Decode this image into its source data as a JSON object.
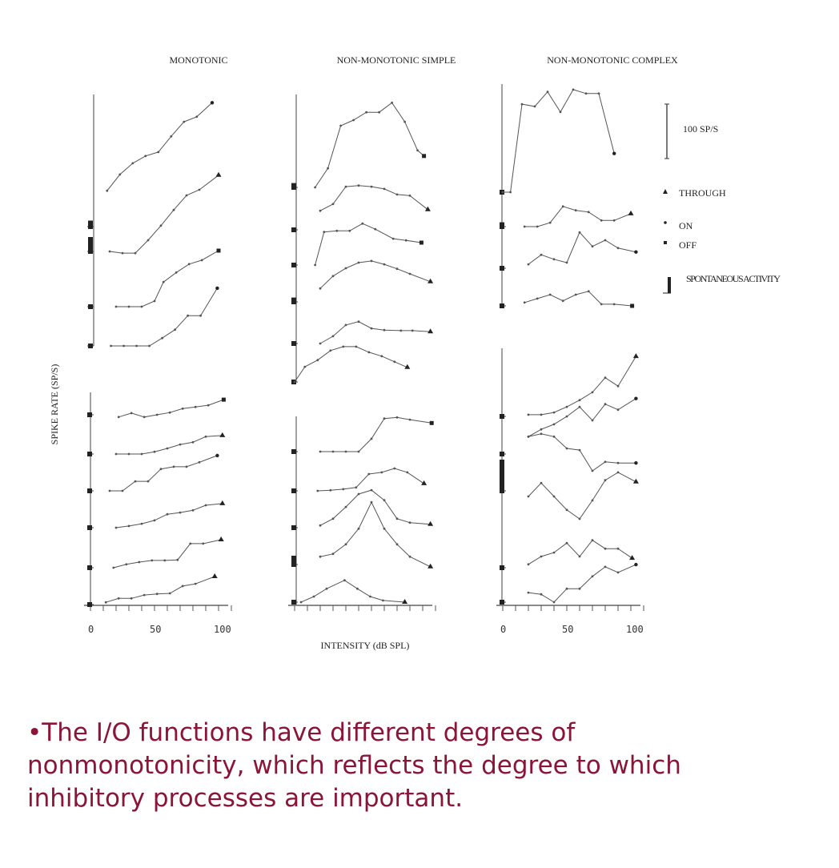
{
  "chart_data": {
    "type": "line",
    "title": "",
    "xlabel": "INTENSITY (dB SPL)",
    "ylabel": "SPIKE RATE (SP/S)",
    "xlim": [
      0,
      100
    ],
    "x_ticks": [
      "0",
      "50",
      "100"
    ],
    "scale_bar": "100 SP/S",
    "panels": [
      {
        "title": "MONOTONIC"
      },
      {
        "title": "NON-MONOTONIC SIMPLE"
      },
      {
        "title": "NON-MONOTONIC COMPLEX"
      }
    ],
    "legend": {
      "placement": "right",
      "items": [
        {
          "marker": "triangle",
          "label": "THROUGH"
        },
        {
          "marker": "dot",
          "label": "ON"
        },
        {
          "marker": "square",
          "label": "OFF"
        },
        {
          "marker": "bar",
          "label": "SPONTANEOUS ACTIVITY"
        }
      ]
    },
    "curves": [
      {
        "panel": 0,
        "marker": "dot",
        "spont": 15,
        "x": [
          13,
          23,
          33,
          43,
          53,
          63,
          73,
          83,
          95
        ],
        "y": [
          64,
          93,
          113,
          126,
          133,
          161,
          187,
          196,
          221
        ]
      },
      {
        "panel": 0,
        "marker": "triangle",
        "spont": 30,
        "x": [
          15,
          25,
          35,
          45,
          55,
          65,
          75,
          85,
          100
        ],
        "y": [
          0,
          -3,
          -3,
          20,
          46,
          74,
          100,
          110,
          136
        ]
      },
      {
        "panel": 0,
        "marker": "square",
        "spont": 0,
        "x": [
          20,
          30,
          40,
          50,
          57,
          67,
          77,
          87,
          100
        ],
        "y": [
          0,
          0,
          0,
          10,
          44,
          61,
          76,
          83,
          100
        ]
      },
      {
        "panel": 0,
        "marker": "dot",
        "spont": 0,
        "x": [
          16,
          26,
          36,
          46,
          56,
          66,
          76,
          86,
          99
        ],
        "y": [
          0,
          0,
          0,
          0,
          14,
          29,
          54,
          54,
          103
        ]
      },
      {
        "panel": 0,
        "marker": "square",
        "spont": 8,
        "x": [
          22,
          32,
          42,
          52,
          62,
          72,
          82,
          92,
          104
        ],
        "y": [
          -4,
          3,
          -4,
          0,
          4,
          11,
          14,
          17,
          27
        ]
      },
      {
        "panel": 0,
        "marker": "triangle",
        "spont": 0,
        "x": [
          20,
          30,
          40,
          50,
          60,
          70,
          80,
          90,
          103
        ],
        "y": [
          0,
          0,
          0,
          4,
          10,
          17,
          21,
          31,
          33
        ]
      },
      {
        "panel": 0,
        "marker": "dot",
        "spont": 6,
        "x": [
          15,
          25,
          35,
          45,
          55,
          65,
          75,
          85,
          99
        ],
        "y": [
          0,
          0,
          17,
          17,
          39,
          43,
          43,
          51,
          63
        ]
      },
      {
        "panel": 0,
        "marker": "triangle",
        "spont": 8,
        "x": [
          20,
          30,
          40,
          50,
          60,
          70,
          80,
          90,
          103
        ],
        "y": [
          0,
          3,
          7,
          13,
          24,
          27,
          31,
          40,
          43
        ]
      },
      {
        "panel": 0,
        "marker": "triangle",
        "spont": 8,
        "x": [
          18,
          28,
          38,
          48,
          58,
          68,
          78,
          88,
          102
        ],
        "y": [
          0,
          6,
          10,
          13,
          13,
          14,
          43,
          43,
          50
        ]
      },
      {
        "panel": 0,
        "marker": "triangle",
        "spont": 8,
        "x": [
          12,
          22,
          32,
          42,
          52,
          62,
          72,
          82,
          97
        ],
        "y": [
          4,
          11,
          11,
          17,
          19,
          20,
          33,
          37,
          50
        ]
      },
      {
        "panel": 1,
        "marker": "square",
        "spont": 12,
        "x": [
          16,
          26,
          36,
          46,
          56,
          66,
          76,
          86,
          96,
          101
        ],
        "y": [
          0,
          34,
          110,
          120,
          134,
          134,
          151,
          117,
          66,
          56
        ]
      },
      {
        "panel": 1,
        "marker": "triangle",
        "spont": 0,
        "x": [
          20,
          30,
          40,
          50,
          60,
          70,
          80,
          90,
          104
        ],
        "y": [
          34,
          46,
          77,
          79,
          77,
          73,
          63,
          61,
          36
        ]
      },
      {
        "panel": 1,
        "marker": "square",
        "spont": 0,
        "x": [
          16,
          23,
          33,
          43,
          53,
          63,
          77,
          87,
          99
        ],
        "y": [
          0,
          59,
          61,
          61,
          74,
          64,
          47,
          44,
          40
        ]
      },
      {
        "panel": 1,
        "marker": "triangle",
        "spont": 12,
        "x": [
          20,
          30,
          40,
          50,
          60,
          70,
          80,
          90,
          106
        ],
        "y": [
          24,
          46,
          60,
          70,
          73,
          67,
          59,
          50,
          36
        ]
      },
      {
        "panel": 1,
        "marker": "triangle",
        "spont": 8,
        "x": [
          20,
          30,
          40,
          50,
          60,
          70,
          83,
          92,
          106
        ],
        "y": [
          0,
          13,
          33,
          39,
          27,
          24,
          23,
          23,
          21
        ]
      },
      {
        "panel": 1,
        "marker": "triangle",
        "spont": 8,
        "x": [
          0,
          8,
          18,
          28,
          38,
          48,
          58,
          68,
          78,
          88
        ],
        "y": [
          0,
          27,
          39,
          56,
          63,
          63,
          53,
          46,
          36,
          26
        ]
      },
      {
        "panel": 1,
        "marker": "square",
        "spont": 8,
        "x": [
          20,
          30,
          40,
          50,
          60,
          70,
          80,
          90,
          107
        ],
        "y": [
          0,
          0,
          0,
          0,
          23,
          59,
          61,
          57,
          51
        ]
      },
      {
        "panel": 1,
        "marker": "triangle",
        "spont": 8,
        "x": [
          18,
          28,
          38,
          48,
          58,
          68,
          78,
          88,
          101
        ],
        "y": [
          0,
          1,
          3,
          6,
          30,
          33,
          40,
          33,
          13
        ]
      },
      {
        "panel": 1,
        "marker": "triangle",
        "spont": 8,
        "x": [
          20,
          30,
          40,
          50,
          60,
          70,
          80,
          90,
          106
        ],
        "y": [
          4,
          16,
          37,
          60,
          67,
          49,
          16,
          9,
          6
        ]
      },
      {
        "panel": 1,
        "marker": "triangle",
        "spont": 20,
        "x": [
          20,
          30,
          40,
          50,
          60,
          70,
          80,
          90,
          106
        ],
        "y": [
          14,
          19,
          36,
          64,
          111,
          64,
          36,
          14,
          -4
        ]
      },
      {
        "panel": 1,
        "marker": "triangle",
        "spont": 8,
        "x": [
          5,
          15,
          25,
          39,
          49,
          59,
          69,
          86
        ],
        "y": [
          0,
          10,
          24,
          39,
          24,
          10,
          3,
          0
        ]
      },
      {
        "panel": 2,
        "marker": "dot",
        "spont": 0,
        "x": [
          0,
          6,
          15,
          25,
          35,
          45,
          55,
          65,
          75,
          87
        ],
        "y": [
          0,
          0,
          157,
          153,
          179,
          143,
          183,
          176,
          176,
          69
        ]
      },
      {
        "panel": 2,
        "marker": "triangle",
        "spont": 12,
        "x": [
          17,
          27,
          37,
          47,
          57,
          67,
          77,
          87,
          100
        ],
        "y": [
          0,
          0,
          7,
          36,
          29,
          26,
          11,
          11,
          23
        ]
      },
      {
        "panel": 2,
        "marker": "dot",
        "spont": 0,
        "x": [
          20,
          30,
          40,
          50,
          60,
          70,
          80,
          90,
          104
        ],
        "y": [
          7,
          24,
          16,
          10,
          64,
          39,
          50,
          36,
          29
        ]
      },
      {
        "panel": 2,
        "marker": "square",
        "spont": 0,
        "x": [
          17,
          27,
          37,
          47,
          57,
          67,
          77,
          87,
          101
        ],
        "y": [
          6,
          13,
          20,
          9,
          20,
          26,
          3,
          3,
          0
        ]
      },
      {
        "panel": 2,
        "marker": "triangle",
        "spont": 0,
        "x": [
          20,
          30,
          40,
          50,
          60,
          70,
          80,
          90,
          104
        ],
        "y": [
          3,
          3,
          7,
          17,
          29,
          43,
          69,
          54,
          107
        ]
      },
      {
        "panel": 2,
        "marker": "dot",
        "spont": 0,
        "x": [
          20,
          30,
          40,
          50,
          60,
          70,
          80,
          90,
          104
        ],
        "y": [
          31,
          44,
          53,
          67,
          84,
          60,
          89,
          79,
          99
        ]
      },
      {
        "panel": 2,
        "marker": "dot",
        "spont": 0,
        "x": [
          20,
          30,
          40,
          50,
          60,
          70,
          80,
          90,
          104
        ],
        "y": [
          31,
          36,
          31,
          10,
          7,
          -30,
          -14,
          -16,
          -16
        ]
      },
      {
        "panel": 2,
        "marker": "triangle",
        "spont": 60,
        "x": [
          20,
          30,
          40,
          50,
          60,
          70,
          80,
          90,
          104
        ],
        "y": [
          -10,
          14,
          -10,
          -34,
          -50,
          -17,
          19,
          33,
          16
        ]
      },
      {
        "panel": 2,
        "marker": "triangle",
        "spont": 0,
        "x": [
          20,
          30,
          40,
          50,
          60,
          70,
          80,
          90,
          101
        ],
        "y": [
          6,
          20,
          27,
          44,
          20,
          49,
          34,
          34,
          17
        ]
      },
      {
        "panel": 2,
        "marker": "dot",
        "spont": 0,
        "x": [
          20,
          30,
          40,
          50,
          60,
          70,
          80,
          90,
          104
        ],
        "y": [
          17,
          14,
          0,
          24,
          24,
          46,
          63,
          53,
          67
        ]
      }
    ]
  },
  "caption": {
    "bullet": "•",
    "text": "The I/O functions have different degrees of nonmonotonicity, which reflects the degree to which inhibitory processes are important."
  }
}
